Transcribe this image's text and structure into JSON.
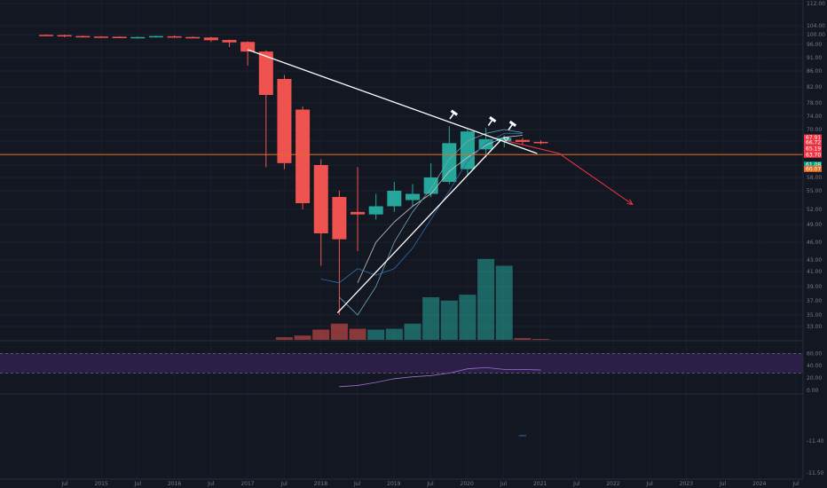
{
  "chart_data": {
    "type": "candlestick",
    "price_ticks": [
      "112.00",
      "104.00",
      "100.00",
      "96.00",
      "91.00",
      "86.00",
      "82.00",
      "78.00",
      "74.00",
      "70.00",
      "67.00",
      "64.00",
      "61.00",
      "58.00",
      "55.00",
      "52.00",
      "49.00",
      "46.00",
      "43.00",
      "41.00",
      "39.00",
      "37.00",
      "35.00",
      "33.00"
    ],
    "price_tick_y": [
      112,
      104,
      100,
      96,
      91,
      86,
      82,
      78,
      74,
      70,
      67,
      64,
      61,
      58,
      55,
      52,
      49,
      46,
      43,
      41,
      39,
      37,
      35,
      33
    ],
    "time_ticks": [
      "Jul",
      "2015",
      "Jul",
      "2016",
      "Jul",
      "2017",
      "Jul",
      "2018",
      "Jul",
      "2019",
      "Jul",
      "2020",
      "Jul",
      "2021",
      "Jul",
      "2022",
      "Jul",
      "2023",
      "Jul",
      "2024",
      "Jul"
    ],
    "candles": [
      {
        "t": 0,
        "o": 99.9,
        "h": 100.1,
        "l": 99.6,
        "c": 99.8
      },
      {
        "t": 1,
        "o": 99.8,
        "h": 100.0,
        "l": 98.9,
        "c": 99.3
      },
      {
        "t": 2,
        "o": 99.4,
        "h": 99.6,
        "l": 98.8,
        "c": 99.1
      },
      {
        "t": 3,
        "o": 99.2,
        "h": 99.4,
        "l": 98.9,
        "c": 99.1
      },
      {
        "t": 4,
        "o": 99.1,
        "h": 99.3,
        "l": 98.9,
        "c": 99.0
      },
      {
        "t": 5,
        "o": 99.0,
        "h": 99.2,
        "l": 98.8,
        "c": 99.0
      },
      {
        "t": 6,
        "o": 98.9,
        "h": 99.6,
        "l": 98.8,
        "c": 99.4
      },
      {
        "t": 7,
        "o": 99.3,
        "h": 99.7,
        "l": 98.8,
        "c": 99.0
      },
      {
        "t": 8,
        "o": 99.0,
        "h": 99.3,
        "l": 98.5,
        "c": 98.8
      },
      {
        "t": 9,
        "o": 98.8,
        "h": 99.0,
        "l": 97.0,
        "c": 97.7
      },
      {
        "t": 10,
        "o": 97.8,
        "h": 98.0,
        "l": 95.0,
        "c": 96.8
      },
      {
        "t": 11,
        "o": 97.0,
        "h": 97.3,
        "l": 88.0,
        "c": 93.3
      },
      {
        "t": 12,
        "o": 93.3,
        "h": 93.8,
        "l": 60.5,
        "c": 80.0
      },
      {
        "t": 13,
        "o": 84.0,
        "h": 85.0,
        "l": 60.0,
        "c": 61.5
      },
      {
        "t": 14,
        "o": 76.0,
        "h": 77.0,
        "l": 52.0,
        "c": 53.0
      },
      {
        "t": 15,
        "o": 61.0,
        "h": 62.5,
        "l": 42.0,
        "c": 47.5
      },
      {
        "t": 16,
        "o": 54.0,
        "h": 55.0,
        "l": 35.0,
        "c": 46.5
      },
      {
        "t": 17,
        "o": 51.5,
        "h": 60.5,
        "l": 44.5,
        "c": 51.0
      },
      {
        "t": 18,
        "o": 51.0,
        "h": 54.5,
        "l": 50.0,
        "c": 52.5
      },
      {
        "t": 19,
        "o": 52.5,
        "h": 57.0,
        "l": 51.5,
        "c": 55.0
      },
      {
        "t": 20,
        "o": 53.5,
        "h": 56.5,
        "l": 52.5,
        "c": 54.5
      },
      {
        "t": 21,
        "o": 54.5,
        "h": 61.5,
        "l": 54.0,
        "c": 58.0
      },
      {
        "t": 22,
        "o": 57.0,
        "h": 71.0,
        "l": 56.5,
        "c": 66.5
      },
      {
        "t": 23,
        "o": 60.0,
        "h": 70.0,
        "l": 58.5,
        "c": 69.5
      },
      {
        "t": 24,
        "o": 65.0,
        "h": 70.5,
        "l": 63.0,
        "c": 67.5
      },
      {
        "t": 25,
        "o": 67.0,
        "h": 68.5,
        "l": 65.5,
        "c": 67.8
      },
      {
        "t": 26,
        "o": 67.3,
        "h": 67.8,
        "l": 66.0,
        "c": 66.8
      },
      {
        "t": 27,
        "o": 66.8,
        "h": 67.2,
        "l": 66.2,
        "c": 66.6
      }
    ],
    "volume": [
      0,
      0,
      0,
      0,
      0,
      0,
      0,
      0,
      0,
      0,
      0,
      0,
      0,
      0.03,
      0.05,
      0.12,
      0.19,
      0.13,
      0.12,
      0.13,
      0.19,
      0.5,
      0.46,
      0.53,
      0.95,
      0.87,
      0.02,
      0.01
    ],
    "ma_fast": [
      [
        17,
        39.5
      ],
      [
        18,
        46.0
      ],
      [
        19,
        49.5
      ],
      [
        20,
        52.5
      ],
      [
        21,
        54.5
      ],
      [
        22,
        59.5
      ],
      [
        23,
        63.0
      ],
      [
        24,
        66.0
      ],
      [
        25,
        68.0
      ],
      [
        26,
        68.5
      ]
    ],
    "ma_slow": [
      [
        16,
        37.5
      ],
      [
        17,
        35.0
      ],
      [
        18,
        39.0
      ],
      [
        19,
        46.0
      ],
      [
        20,
        51.5
      ],
      [
        21,
        55.5
      ],
      [
        22,
        62.5
      ],
      [
        23,
        67.0
      ],
      [
        24,
        69.0
      ],
      [
        25,
        70.0
      ],
      [
        26,
        69.2
      ]
    ],
    "ma_blue": [
      [
        15,
        40.0
      ],
      [
        16,
        39.5
      ],
      [
        17,
        41.5
      ],
      [
        18,
        40.5
      ],
      [
        19,
        41.5
      ],
      [
        20,
        45.0
      ],
      [
        21,
        50.0
      ],
      [
        22,
        55.0
      ],
      [
        23,
        62.0
      ],
      [
        24,
        66.5
      ],
      [
        25,
        69.0
      ],
      [
        26,
        69.0
      ]
    ],
    "trendline_down": [
      [
        11,
        94.0
      ],
      [
        26.8,
        64.0
      ]
    ],
    "trendline_up": [
      [
        15.9,
        35.3
      ],
      [
        24.8,
        67.2
      ]
    ],
    "horizontal_level": 63.7,
    "projection": [
      [
        25,
        67.2
      ],
      [
        28,
        64.0
      ],
      [
        32,
        52.8
      ]
    ],
    "price_labels": [
      {
        "text": "67.91",
        "y": 67.91,
        "color": "#f23645"
      },
      {
        "text": "66.72",
        "y": 66.72,
        "color": "#f23645"
      },
      {
        "text": "65.19",
        "y": 65.19,
        "color": "#f23645"
      },
      {
        "text": "63.70",
        "y": 63.7,
        "color": "#f23645"
      },
      {
        "text": "61.08",
        "y": 61.08,
        "color": "#089981"
      },
      {
        "text": "60.07",
        "y": 60.07,
        "color": "#e66a1f"
      }
    ],
    "osc_ticks": [
      "60.00",
      "40.00",
      "20.00",
      "0.00"
    ],
    "osc_values": [
      60,
      40,
      20,
      0
    ],
    "osc_line": [
      [
        16,
        6
      ],
      [
        17,
        8
      ],
      [
        18,
        13
      ],
      [
        19,
        19
      ],
      [
        20,
        22
      ],
      [
        21,
        24
      ],
      [
        22,
        28
      ],
      [
        23,
        35
      ],
      [
        24,
        37
      ],
      [
        25,
        34
      ],
      [
        26,
        34
      ],
      [
        27,
        33
      ]
    ],
    "osc_band": [
      60,
      28
    ],
    "macd_ticks": [
      "-11.50",
      "-11.40"
    ],
    "macd_values": [
      -11.5,
      -11.4
    ]
  },
  "colors": {
    "up": "#26a69a",
    "down": "#ef5350",
    "up_volume": "#26a69a",
    "down_volume": "#ef5350",
    "trendline": "#ffffff",
    "level": "#e66a1f",
    "projection": "#f23645",
    "osc_line": "#9c6fd3",
    "osc_band": "#2b1f47"
  }
}
